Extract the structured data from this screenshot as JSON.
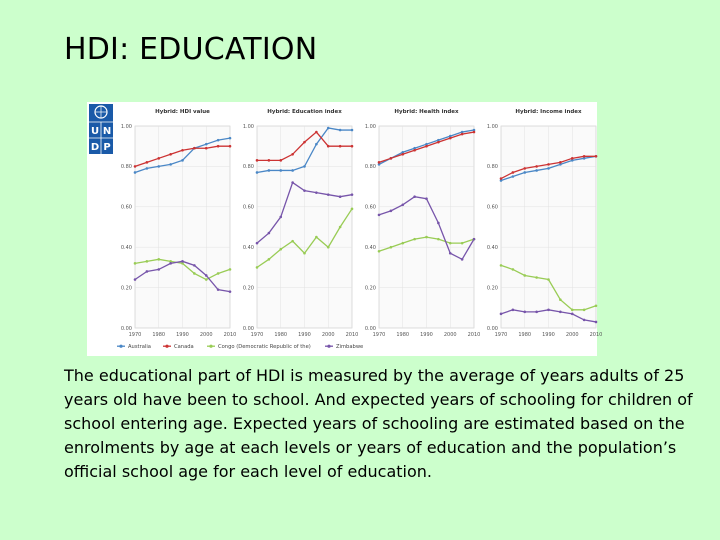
{
  "slide": {
    "title": "HDI: EDUCATION",
    "body": "The educational part of HDI is measured by the average of years adults of 25 years old have been to school. And expected years of schooling for children of school entering age. Expected years of schooling are estimated based on the enrolments by age at each levels or years of education and the population’s official school age for each level of education."
  },
  "logo": {
    "text": "UNDP",
    "letters": [
      "U",
      "N",
      "D",
      "P"
    ]
  },
  "colors": {
    "Australia": "#4a87c6",
    "Canada": "#cc3333",
    "Congo (Democratic Republic of the)": "#99cc55",
    "Zimbabwe": "#7755aa"
  },
  "chart_data": {
    "type": "line",
    "legend": {
      "placement": "bottom",
      "entries": [
        "Australia",
        "Canada",
        "Congo (Democratic Republic of the)",
        "Zimbabwe"
      ]
    },
    "panels": [
      {
        "title": "Hybrid: HDI value",
        "ylim": [
          0,
          1
        ],
        "y_ticks": [
          "0.00",
          "0.20",
          "0.40",
          "0.60",
          "0.80",
          "1.00"
        ],
        "x_ticks": [
          "1970",
          "1980",
          "1990",
          "2000",
          "2010"
        ],
        "xlim": [
          1970,
          2010
        ],
        "grid": true,
        "series": [
          {
            "name": "Australia",
            "x": [
              1970,
              1975,
              1980,
              1985,
              1990,
              1995,
              2000,
              2005,
              2010
            ],
            "y": [
              0.77,
              0.79,
              0.8,
              0.81,
              0.83,
              0.89,
              0.91,
              0.93,
              0.94
            ]
          },
          {
            "name": "Canada",
            "x": [
              1970,
              1975,
              1980,
              1985,
              1990,
              1995,
              2000,
              2005,
              2010
            ],
            "y": [
              0.8,
              0.82,
              0.84,
              0.86,
              0.88,
              0.89,
              0.89,
              0.9,
              0.9
            ]
          },
          {
            "name": "Congo (Democratic Republic of the)",
            "x": [
              1970,
              1975,
              1980,
              1985,
              1990,
              1995,
              2000,
              2005,
              2010
            ],
            "y": [
              0.32,
              0.33,
              0.34,
              0.33,
              0.32,
              0.27,
              0.24,
              0.27,
              0.29
            ]
          },
          {
            "name": "Zimbabwe",
            "x": [
              1970,
              1975,
              1980,
              1985,
              1990,
              1995,
              2000,
              2005,
              2010
            ],
            "y": [
              0.24,
              0.28,
              0.29,
              0.32,
              0.33,
              0.31,
              0.26,
              0.19,
              0.18
            ]
          }
        ]
      },
      {
        "title": "Hybrid: Education index",
        "ylim": [
          0,
          1
        ],
        "y_ticks": [
          "0.00",
          "0.20",
          "0.40",
          "0.60",
          "0.80",
          "1.00"
        ],
        "x_ticks": [
          "1970",
          "1980",
          "1990",
          "2000",
          "2010"
        ],
        "xlim": [
          1970,
          2010
        ],
        "grid": true,
        "series": [
          {
            "name": "Australia",
            "x": [
              1970,
              1975,
              1980,
              1985,
              1990,
              1995,
              2000,
              2005,
              2010
            ],
            "y": [
              0.77,
              0.78,
              0.78,
              0.78,
              0.8,
              0.91,
              0.99,
              0.98,
              0.98
            ]
          },
          {
            "name": "Canada",
            "x": [
              1970,
              1975,
              1980,
              1985,
              1990,
              1995,
              2000,
              2005,
              2010
            ],
            "y": [
              0.83,
              0.83,
              0.83,
              0.86,
              0.92,
              0.97,
              0.9,
              0.9,
              0.9
            ]
          },
          {
            "name": "Congo (Democratic Republic of the)",
            "x": [
              1970,
              1975,
              1980,
              1985,
              1990,
              1995,
              2000,
              2005,
              2010
            ],
            "y": [
              0.3,
              0.34,
              0.39,
              0.43,
              0.37,
              0.45,
              0.4,
              0.5,
              0.59
            ]
          },
          {
            "name": "Zimbabwe",
            "x": [
              1970,
              1975,
              1980,
              1985,
              1990,
              1995,
              2000,
              2005,
              2010
            ],
            "y": [
              0.42,
              0.47,
              0.55,
              0.72,
              0.68,
              0.67,
              0.66,
              0.65,
              0.66
            ]
          }
        ]
      },
      {
        "title": "Hybrid: Health index",
        "ylim": [
          0,
          1
        ],
        "y_ticks": [
          "0.00",
          "0.20",
          "0.40",
          "0.60",
          "0.80",
          "1.00"
        ],
        "x_ticks": [
          "1970",
          "1980",
          "1990",
          "2000",
          "2010"
        ],
        "xlim": [
          1970,
          2010
        ],
        "grid": true,
        "series": [
          {
            "name": "Australia",
            "x": [
              1970,
              1975,
              1980,
              1985,
              1990,
              1995,
              2000,
              2005,
              2010
            ],
            "y": [
              0.81,
              0.84,
              0.87,
              0.89,
              0.91,
              0.93,
              0.95,
              0.97,
              0.98
            ]
          },
          {
            "name": "Canada",
            "x": [
              1970,
              1975,
              1980,
              1985,
              1990,
              1995,
              2000,
              2005,
              2010
            ],
            "y": [
              0.82,
              0.84,
              0.86,
              0.88,
              0.9,
              0.92,
              0.94,
              0.96,
              0.97
            ]
          },
          {
            "name": "Congo (Democratic Republic of the)",
            "x": [
              1970,
              1975,
              1980,
              1985,
              1990,
              1995,
              2000,
              2005,
              2010
            ],
            "y": [
              0.38,
              0.4,
              0.42,
              0.44,
              0.45,
              0.44,
              0.42,
              0.42,
              0.44
            ]
          },
          {
            "name": "Zimbabwe",
            "x": [
              1970,
              1975,
              1980,
              1985,
              1990,
              1995,
              2000,
              2005,
              2010
            ],
            "y": [
              0.56,
              0.58,
              0.61,
              0.65,
              0.64,
              0.52,
              0.37,
              0.34,
              0.44
            ]
          }
        ]
      },
      {
        "title": "Hybrid: Income index",
        "ylim": [
          0,
          1
        ],
        "y_ticks": [
          "0.00",
          "0.20",
          "0.40",
          "0.60",
          "0.80",
          "1.00"
        ],
        "x_ticks": [
          "1970",
          "1980",
          "1990",
          "2000",
          "2010"
        ],
        "xlim": [
          1970,
          2010
        ],
        "grid": true,
        "series": [
          {
            "name": "Australia",
            "x": [
              1970,
              1975,
              1980,
              1985,
              1990,
              1995,
              2000,
              2005,
              2010
            ],
            "y": [
              0.73,
              0.75,
              0.77,
              0.78,
              0.79,
              0.81,
              0.83,
              0.84,
              0.85
            ]
          },
          {
            "name": "Canada",
            "x": [
              1970,
              1975,
              1980,
              1985,
              1990,
              1995,
              2000,
              2005,
              2010
            ],
            "y": [
              0.74,
              0.77,
              0.79,
              0.8,
              0.81,
              0.82,
              0.84,
              0.85,
              0.85
            ]
          },
          {
            "name": "Congo (Democratic Republic of the)",
            "x": [
              1970,
              1975,
              1980,
              1985,
              1990,
              1995,
              2000,
              2005,
              2010
            ],
            "y": [
              0.31,
              0.29,
              0.26,
              0.25,
              0.24,
              0.14,
              0.09,
              0.09,
              0.11
            ]
          },
          {
            "name": "Zimbabwe",
            "x": [
              1970,
              1975,
              1980,
              1985,
              1990,
              1995,
              2000,
              2005,
              2010
            ],
            "y": [
              0.07,
              0.09,
              0.08,
              0.08,
              0.09,
              0.08,
              0.07,
              0.04,
              0.03
            ]
          }
        ]
      }
    ]
  }
}
